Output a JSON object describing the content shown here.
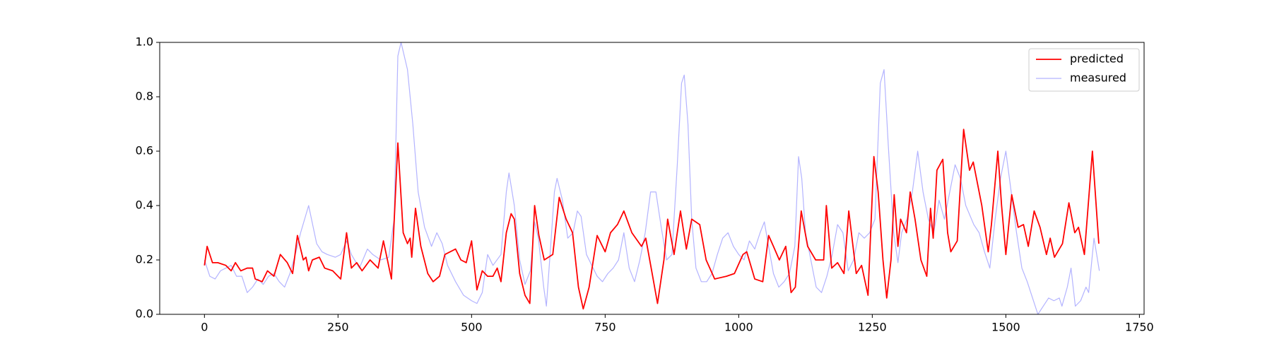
{
  "chart_data": {
    "type": "line",
    "xlim": [
      -83.75,
      1758.75
    ],
    "ylim": [
      0,
      1
    ],
    "xticks": [
      0,
      250,
      500,
      750,
      1000,
      1250,
      1500,
      1750
    ],
    "yticks": [
      {
        "value": 0,
        "label": "0.0"
      },
      {
        "value": 0.2,
        "label": "0.2"
      },
      {
        "value": 0.4,
        "label": "0.4"
      },
      {
        "value": 0.6,
        "label": "0.6"
      },
      {
        "value": 0.8,
        "label": "0.8"
      },
      {
        "value": 1,
        "label": "1.0"
      }
    ],
    "legend": "upper right",
    "series": [
      {
        "name": "predicted",
        "color": "#ff0000",
        "x": [
          0,
          5,
          15,
          25,
          40,
          50,
          58,
          68,
          80,
          90,
          95,
          108,
          118,
          130,
          142,
          155,
          165,
          174,
          185,
          190,
          195,
          202,
          215,
          225,
          240,
          255,
          266,
          275,
          285,
          295,
          310,
          325,
          335,
          350,
          362,
          372,
          380,
          385,
          388,
          395,
          405,
          418,
          428,
          440,
          450,
          460,
          470,
          480,
          490,
          500,
          510,
          520,
          530,
          540,
          548,
          555,
          565,
          574,
          580,
          590,
          600,
          609,
          618,
          626,
          636,
          652,
          664,
          677,
          689,
          700,
          709,
          720,
          735,
          750,
          760,
          773,
          785,
          800,
          818,
          826,
          838,
          848,
          860,
          867,
          879,
          891,
          902,
          912,
          927,
          939,
          955,
          977,
          992,
          1008,
          1015,
          1030,
          1045,
          1056,
          1065,
          1076,
          1088,
          1098,
          1106,
          1117,
          1129,
          1144,
          1159,
          1164,
          1174,
          1185,
          1197,
          1206,
          1220,
          1230,
          1242,
          1253,
          1261,
          1270,
          1277,
          1285,
          1291,
          1298,
          1303,
          1314,
          1321,
          1330,
          1341,
          1352,
          1359,
          1364,
          1371,
          1382,
          1391,
          1397,
          1409,
          1421,
          1432,
          1439,
          1455,
          1467,
          1473,
          1485,
          1492,
          1500,
          1511,
          1523,
          1533,
          1542,
          1553,
          1564,
          1576,
          1583,
          1591,
          1606,
          1618,
          1629,
          1636,
          1647,
          1662,
          1674
        ],
        "values": [
          0.18,
          0.25,
          0.19,
          0.19,
          0.18,
          0.16,
          0.19,
          0.16,
          0.17,
          0.17,
          0.13,
          0.12,
          0.16,
          0.14,
          0.22,
          0.19,
          0.15,
          0.29,
          0.2,
          0.21,
          0.16,
          0.2,
          0.21,
          0.17,
          0.16,
          0.13,
          0.3,
          0.17,
          0.19,
          0.16,
          0.2,
          0.17,
          0.27,
          0.13,
          0.63,
          0.3,
          0.26,
          0.28,
          0.21,
          0.39,
          0.25,
          0.15,
          0.12,
          0.14,
          0.22,
          0.23,
          0.24,
          0.2,
          0.19,
          0.27,
          0.09,
          0.16,
          0.14,
          0.14,
          0.17,
          0.12,
          0.3,
          0.37,
          0.35,
          0.15,
          0.07,
          0.04,
          0.4,
          0.29,
          0.2,
          0.22,
          0.43,
          0.35,
          0.3,
          0.1,
          0.02,
          0.1,
          0.29,
          0.23,
          0.3,
          0.33,
          0.38,
          0.3,
          0.25,
          0.28,
          0.15,
          0.04,
          0.2,
          0.35,
          0.22,
          0.38,
          0.24,
          0.35,
          0.33,
          0.2,
          0.13,
          0.14,
          0.15,
          0.22,
          0.23,
          0.13,
          0.12,
          0.29,
          0.25,
          0.2,
          0.25,
          0.08,
          0.1,
          0.38,
          0.25,
          0.2,
          0.2,
          0.4,
          0.17,
          0.19,
          0.15,
          0.38,
          0.15,
          0.18,
          0.07,
          0.58,
          0.45,
          0.2,
          0.06,
          0.2,
          0.44,
          0.25,
          0.35,
          0.3,
          0.45,
          0.35,
          0.2,
          0.14,
          0.39,
          0.28,
          0.53,
          0.57,
          0.3,
          0.23,
          0.27,
          0.68,
          0.53,
          0.56,
          0.4,
          0.23,
          0.33,
          0.6,
          0.4,
          0.22,
          0.44,
          0.32,
          0.33,
          0.25,
          0.38,
          0.32,
          0.22,
          0.28,
          0.21,
          0.26,
          0.41,
          0.3,
          0.32,
          0.22,
          0.6,
          0.26
        ]
      },
      {
        "name": "measured",
        "color": "#b3b3ff",
        "x": [
          0,
          10,
          20,
          30,
          40,
          50,
          60,
          70,
          80,
          90,
          100,
          110,
          120,
          130,
          140,
          150,
          160,
          170,
          180,
          195,
          210,
          220,
          230,
          245,
          255,
          266,
          275,
          290,
          305,
          315,
          330,
          345,
          355,
          362,
          368,
          380,
          390,
          400,
          412,
          425,
          435,
          445,
          455,
          470,
          485,
          500,
          510,
          520,
          530,
          540,
          555,
          565,
          570,
          580,
          590,
          600,
          610,
          618,
          625,
          635,
          640,
          648,
          655,
          660,
          670,
          680,
          690,
          698,
          705,
          715,
          725,
          735,
          745,
          755,
          765,
          775,
          785,
          795,
          805,
          815,
          825,
          835,
          845,
          855,
          865,
          875,
          885,
          893,
          898,
          905,
          912,
          920,
          930,
          940,
          950,
          960,
          970,
          980,
          990,
          1000,
          1010,
          1020,
          1030,
          1040,
          1048,
          1055,
          1065,
          1075,
          1085,
          1095,
          1105,
          1112,
          1118,
          1125,
          1135,
          1145,
          1155,
          1165,
          1175,
          1185,
          1195,
          1205,
          1215,
          1225,
          1235,
          1245,
          1255,
          1265,
          1272,
          1280,
          1290,
          1298,
          1305,
          1315,
          1325,
          1335,
          1345,
          1355,
          1365,
          1375,
          1385,
          1395,
          1405,
          1415,
          1425,
          1440,
          1450,
          1460,
          1470,
          1480,
          1490,
          1500,
          1510,
          1520,
          1530,
          1540,
          1550,
          1560,
          1570,
          1580,
          1590,
          1600,
          1605,
          1615,
          1622,
          1630,
          1640,
          1650,
          1655,
          1665,
          1675
        ],
        "values": [
          0.2,
          0.14,
          0.13,
          0.16,
          0.17,
          0.18,
          0.14,
          0.14,
          0.08,
          0.1,
          0.13,
          0.11,
          0.14,
          0.15,
          0.12,
          0.1,
          0.15,
          0.22,
          0.3,
          0.4,
          0.26,
          0.23,
          0.22,
          0.21,
          0.22,
          0.27,
          0.22,
          0.17,
          0.24,
          0.22,
          0.2,
          0.21,
          0.35,
          0.95,
          1.0,
          0.9,
          0.7,
          0.45,
          0.32,
          0.25,
          0.3,
          0.26,
          0.18,
          0.12,
          0.07,
          0.05,
          0.04,
          0.08,
          0.22,
          0.18,
          0.22,
          0.45,
          0.52,
          0.4,
          0.2,
          0.11,
          0.16,
          0.34,
          0.28,
          0.1,
          0.03,
          0.25,
          0.45,
          0.5,
          0.42,
          0.28,
          0.3,
          0.38,
          0.36,
          0.22,
          0.18,
          0.14,
          0.12,
          0.15,
          0.17,
          0.2,
          0.3,
          0.17,
          0.12,
          0.2,
          0.3,
          0.45,
          0.45,
          0.32,
          0.2,
          0.22,
          0.55,
          0.85,
          0.88,
          0.7,
          0.35,
          0.17,
          0.12,
          0.12,
          0.15,
          0.22,
          0.28,
          0.3,
          0.25,
          0.22,
          0.2,
          0.27,
          0.24,
          0.3,
          0.34,
          0.26,
          0.15,
          0.1,
          0.12,
          0.15,
          0.25,
          0.58,
          0.5,
          0.3,
          0.2,
          0.1,
          0.08,
          0.14,
          0.22,
          0.33,
          0.3,
          0.16,
          0.2,
          0.3,
          0.28,
          0.3,
          0.35,
          0.85,
          0.9,
          0.62,
          0.3,
          0.19,
          0.3,
          0.35,
          0.45,
          0.6,
          0.45,
          0.35,
          0.3,
          0.42,
          0.35,
          0.45,
          0.55,
          0.5,
          0.4,
          0.33,
          0.3,
          0.23,
          0.17,
          0.35,
          0.5,
          0.6,
          0.45,
          0.3,
          0.17,
          0.12,
          0.06,
          0.0,
          0.03,
          0.06,
          0.05,
          0.06,
          0.03,
          0.1,
          0.17,
          0.03,
          0.05,
          0.1,
          0.08,
          0.28,
          0.16
        ]
      }
    ]
  }
}
